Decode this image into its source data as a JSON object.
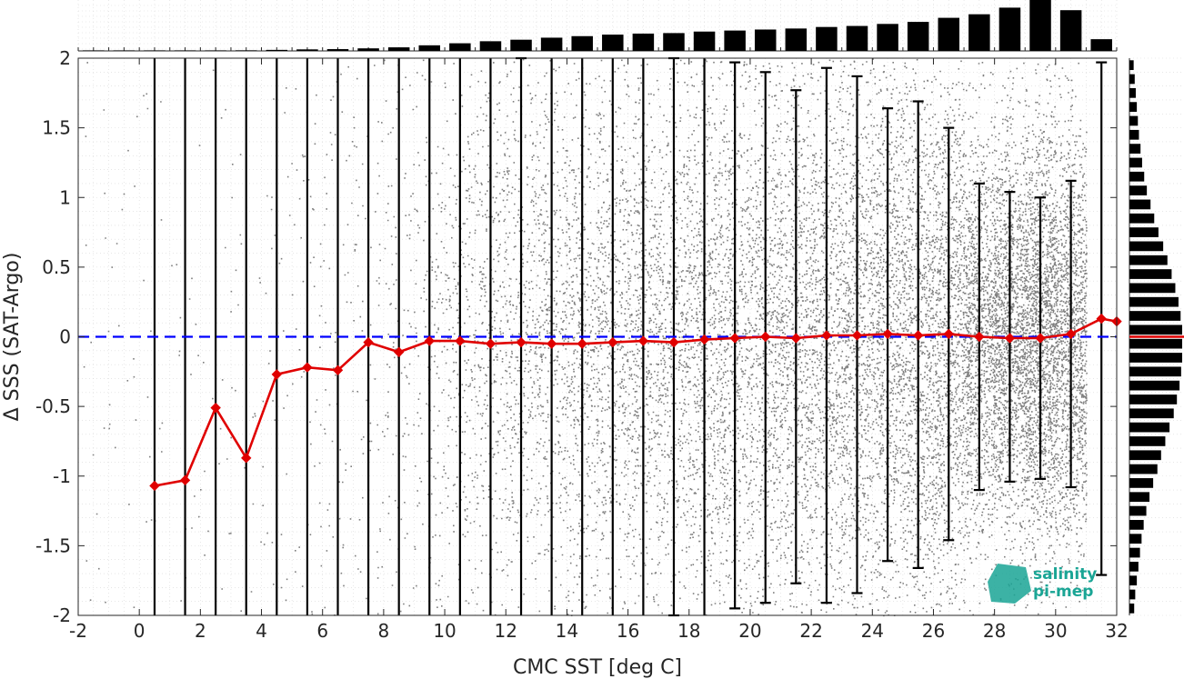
{
  "chart_data": {
    "type": "scatter",
    "xlabel": "CMC SST [deg C]",
    "ylabel": "Δ SSS (SAT-Argo)",
    "xlim": [
      -2,
      32
    ],
    "ylim": [
      -2,
      2
    ],
    "xticks": [
      "-2",
      "0",
      "2",
      "4",
      "6",
      "8",
      "10",
      "12",
      "14",
      "16",
      "18",
      "20",
      "22",
      "24",
      "26",
      "28",
      "30",
      "32"
    ],
    "yticks": [
      "2",
      "1.5",
      "1",
      "0.5",
      "0",
      "-0.5",
      "-1",
      "-1.5",
      "-2"
    ],
    "grid": "on",
    "reference_line": {
      "y": 0,
      "style": "dashed",
      "color": "#0000ff"
    },
    "series": [
      {
        "x": [
          0.5,
          1.5,
          2.5,
          3.5,
          4.5,
          5.5,
          6.5,
          7.5,
          8.5,
          9.5,
          10.5,
          11.5,
          12.5,
          13.5,
          14.5,
          15.5,
          16.5,
          17.5,
          18.5,
          19.5,
          20.5,
          21.5,
          22.5,
          23.5,
          24.5,
          25.5,
          26.5,
          27.5,
          28.5,
          29.5,
          30.5,
          31.5,
          32.0
        ],
        "values": [
          -1.07,
          -1.03,
          -0.51,
          -0.87,
          -0.27,
          -0.22,
          -0.24,
          -0.04,
          -0.11,
          -0.03,
          -0.03,
          -0.05,
          -0.04,
          -0.05,
          -0.05,
          -0.04,
          -0.03,
          -0.04,
          -0.02,
          -0.01,
          0.0,
          -0.01,
          0.01,
          0.01,
          0.02,
          0.01,
          0.02,
          0.0,
          -0.01,
          -0.01,
          0.02,
          0.13,
          0.11
        ],
        "color": "#e00000",
        "marker": "diamond"
      }
    ],
    "error_bars": {
      "x": [
        0.5,
        1.5,
        2.5,
        3.5,
        4.5,
        5.5,
        6.5,
        7.5,
        8.5,
        9.5,
        10.5,
        11.5,
        12.5,
        13.5,
        14.5,
        15.5,
        16.5,
        17.5,
        18.5,
        19.5,
        20.5,
        21.5,
        22.5,
        23.5,
        24.5,
        25.5,
        26.5,
        27.5,
        28.5,
        29.5,
        30.5,
        31.5
      ],
      "upper": [
        2.5,
        2.5,
        2.5,
        2.5,
        2.5,
        2.5,
        2.5,
        2.5,
        2.5,
        2.5,
        2.5,
        2.3,
        2.0,
        2.3,
        2.2,
        2.2,
        2.1,
        2.0,
        2.1,
        1.97,
        1.9,
        1.77,
        1.93,
        1.87,
        1.64,
        1.69,
        1.5,
        1.1,
        1.04,
        1.0,
        1.12,
        1.97
      ],
      "lower": [
        -2.5,
        -2.5,
        -2.5,
        -2.5,
        -2.5,
        -2.5,
        -2.5,
        -2.5,
        -2.5,
        -2.5,
        -2.5,
        -2.3,
        -2.1,
        -2.3,
        -2.2,
        -2.3,
        -2.1,
        -2.0,
        -2.2,
        -1.95,
        -1.91,
        -1.77,
        -1.91,
        -1.84,
        -1.61,
        -1.66,
        -1.46,
        -1.1,
        -1.04,
        -1.02,
        -1.08,
        -1.71
      ]
    },
    "top_histogram": {
      "x": [
        -1.5,
        -0.5,
        0.5,
        1.5,
        2.5,
        3.5,
        4.5,
        5.5,
        6.5,
        7.5,
        8.5,
        9.5,
        10.5,
        11.5,
        12.5,
        13.5,
        14.5,
        15.5,
        16.5,
        17.5,
        18.5,
        19.5,
        20.5,
        21.5,
        22.5,
        23.5,
        24.5,
        25.5,
        26.5,
        27.5,
        28.5,
        29.5,
        30.5,
        31.5
      ],
      "values": [
        0.005,
        0.005,
        0.007,
        0.009,
        0.01,
        0.012,
        0.02,
        0.03,
        0.035,
        0.05,
        0.07,
        0.11,
        0.15,
        0.19,
        0.22,
        0.26,
        0.29,
        0.32,
        0.34,
        0.35,
        0.38,
        0.4,
        0.42,
        0.44,
        0.47,
        0.49,
        0.53,
        0.57,
        0.65,
        0.72,
        0.85,
        1.0,
        0.8,
        0.23
      ]
    },
    "right_histogram": {
      "y": [
        -1.95,
        -1.85,
        -1.75,
        -1.65,
        -1.55,
        -1.45,
        -1.35,
        -1.25,
        -1.15,
        -1.05,
        -0.95,
        -0.85,
        -0.75,
        -0.65,
        -0.55,
        -0.45,
        -0.35,
        -0.25,
        -0.15,
        -0.05,
        0.05,
        0.15,
        0.25,
        0.35,
        0.45,
        0.55,
        0.65,
        0.75,
        0.85,
        0.95,
        1.05,
        1.15,
        1.25,
        1.35,
        1.45,
        1.55,
        1.65,
        1.75,
        1.85,
        1.95
      ],
      "values": [
        0.09,
        0.11,
        0.14,
        0.17,
        0.2,
        0.23,
        0.27,
        0.32,
        0.38,
        0.45,
        0.53,
        0.6,
        0.68,
        0.76,
        0.84,
        0.9,
        0.95,
        0.98,
        1.0,
        1.0,
        1.0,
        0.97,
        0.93,
        0.87,
        0.8,
        0.72,
        0.64,
        0.55,
        0.47,
        0.4,
        0.33,
        0.28,
        0.24,
        0.21,
        0.18,
        0.16,
        0.14,
        0.12,
        0.1,
        0.08
      ]
    }
  },
  "logo": {
    "line1": "salinity",
    "line2": "pi-mep"
  }
}
